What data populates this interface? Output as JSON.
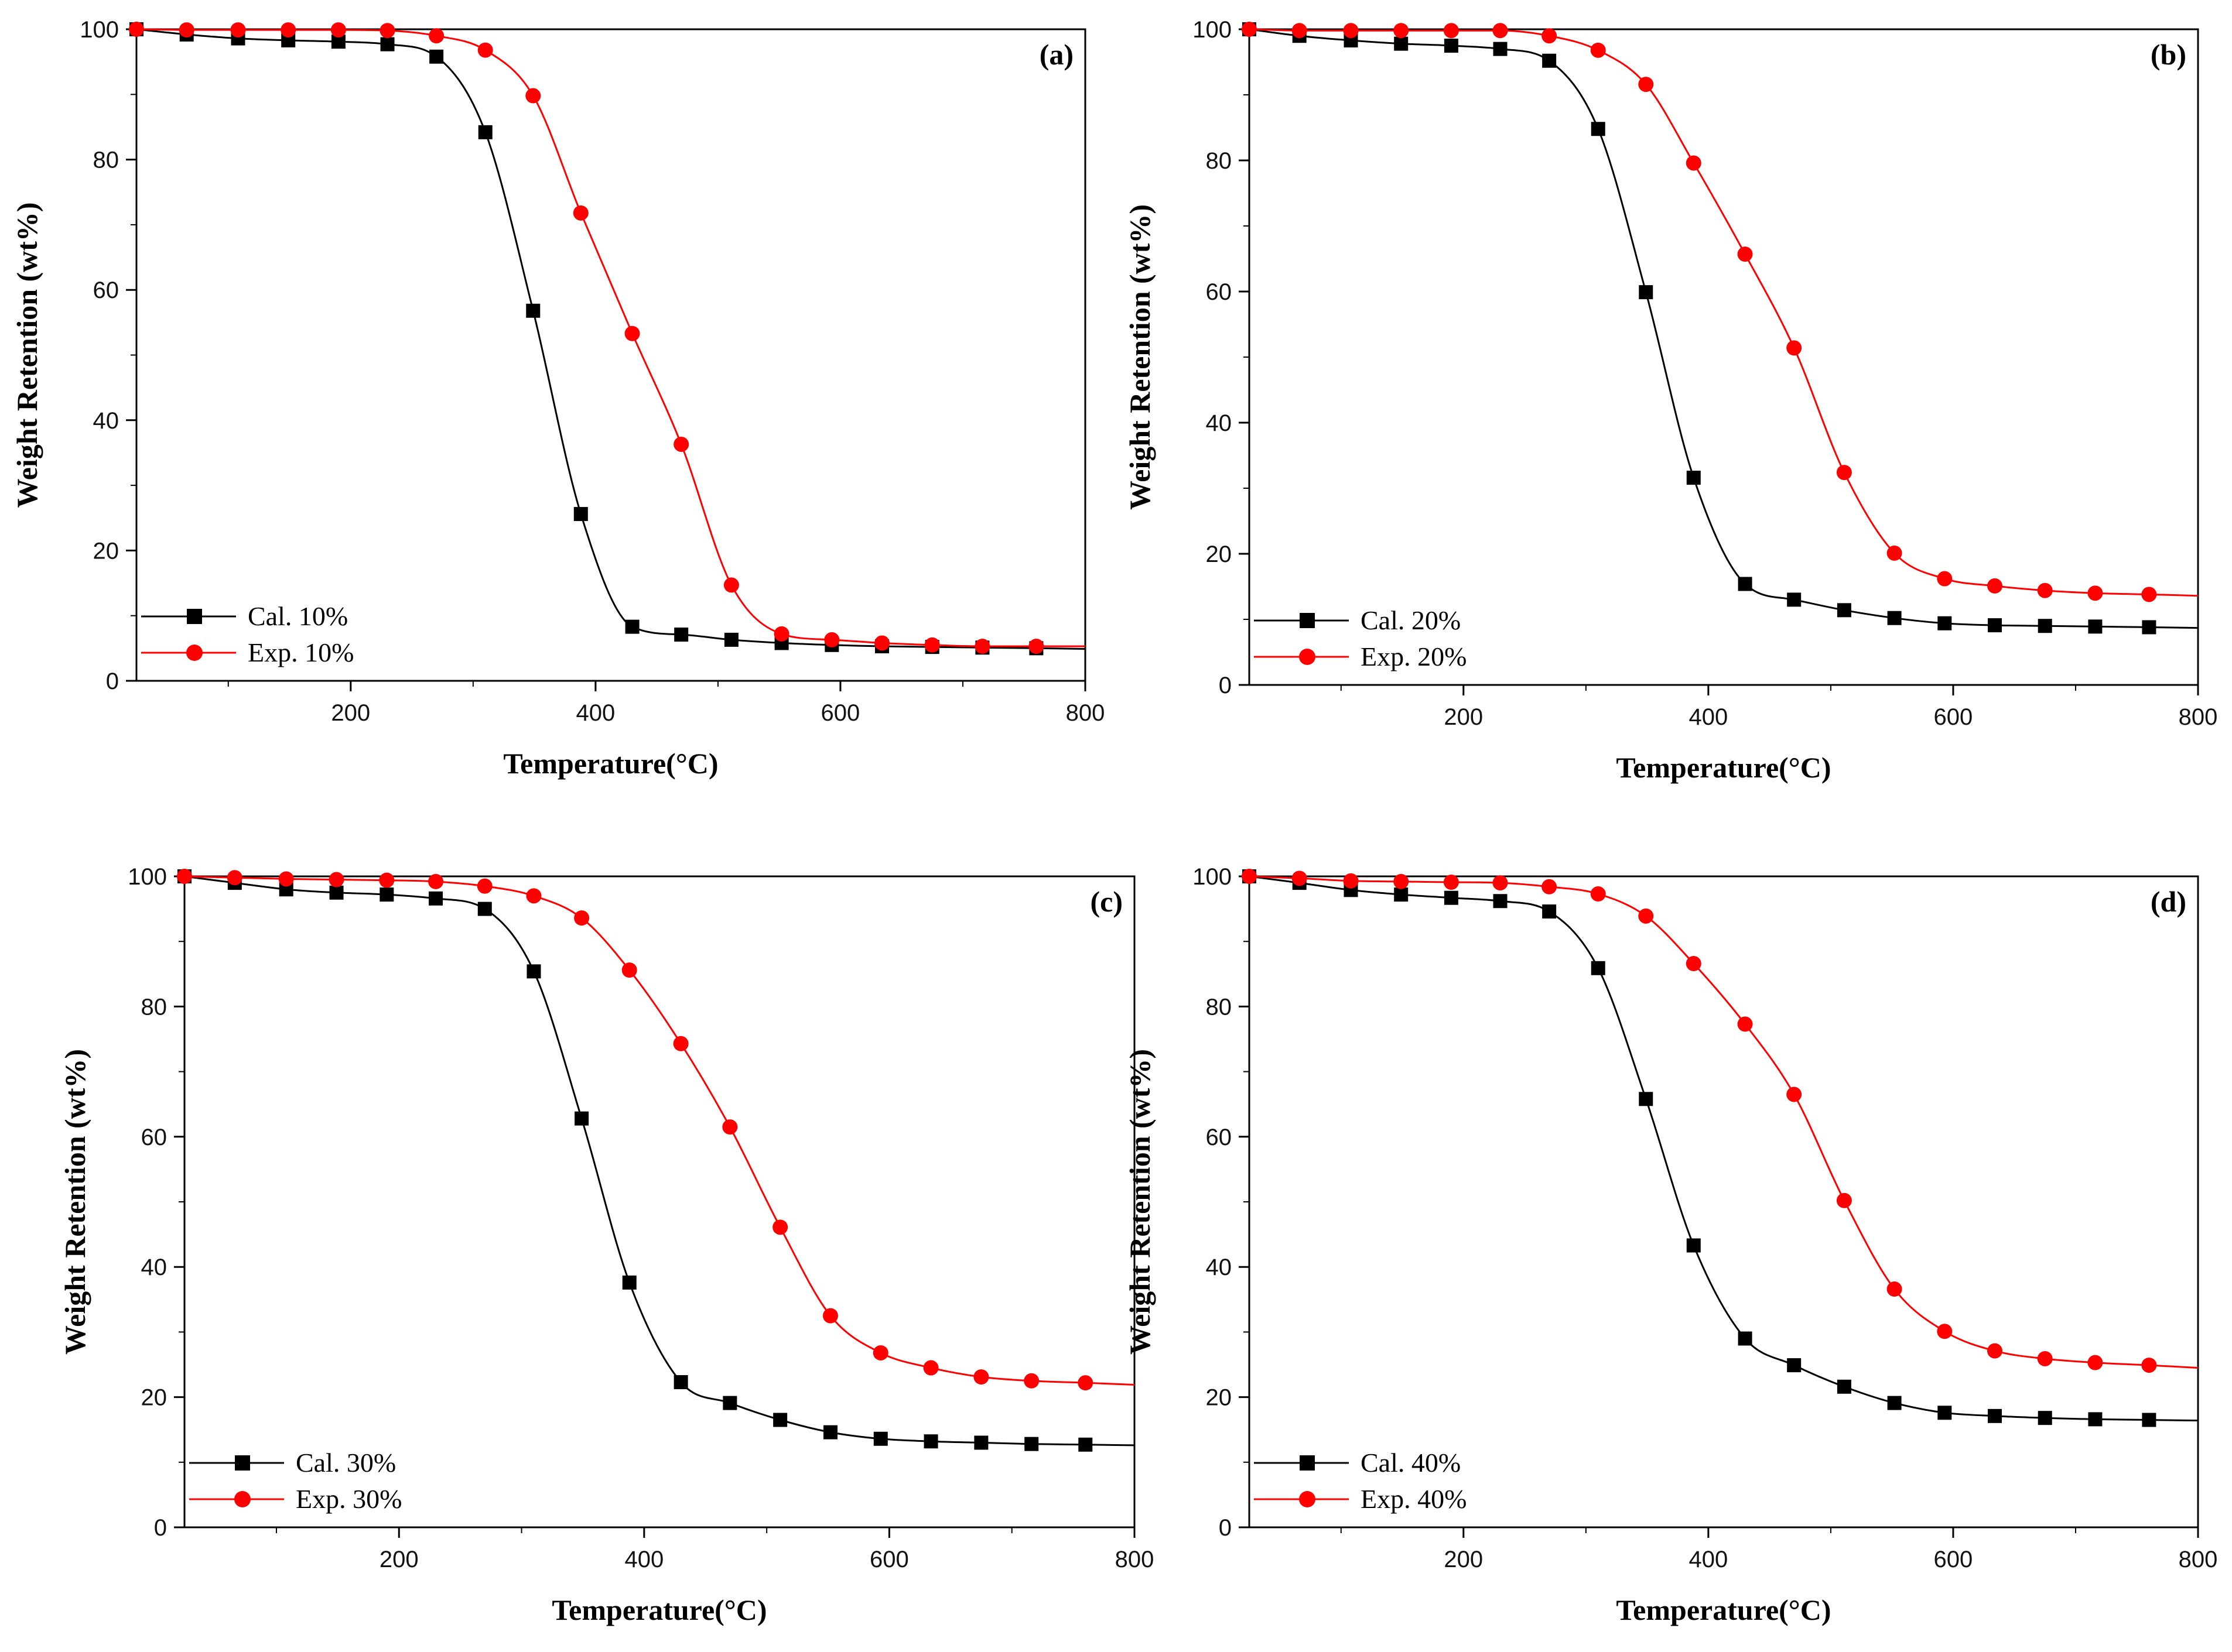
{
  "chart_data": [
    {
      "type": "line",
      "panel_label": "(a)",
      "xlabel": "Temperature(°C)",
      "ylabel": "Weight Retention (wt%)",
      "xlim": [
        25,
        800
      ],
      "ylim": [
        0,
        100
      ],
      "xticks": [
        200,
        400,
        600,
        800
      ],
      "yticks": [
        0,
        20,
        40,
        60,
        80,
        100
      ],
      "x": [
        25,
        66,
        108,
        149,
        190,
        230,
        270,
        310,
        349,
        388,
        430,
        470,
        511,
        552,
        593,
        634,
        675,
        716,
        760
      ],
      "series": [
        {
          "name": "Cal. 10%",
          "color": "#000000",
          "marker": "square",
          "values": [
            100,
            99.2,
            98.6,
            98.3,
            98.1,
            97.7,
            95.8,
            84.2,
            56.8,
            25.6,
            8.3,
            7.1,
            6.3,
            5.8,
            5.5,
            5.3,
            5.2,
            5.1,
            5.0
          ]
        },
        {
          "name": "Exp. 10%",
          "color": "#ff0000",
          "marker": "circle",
          "values": [
            100,
            99.9,
            99.9,
            99.9,
            99.9,
            99.8,
            99.0,
            96.8,
            89.8,
            71.8,
            53.3,
            36.3,
            14.7,
            7.2,
            6.3,
            5.8,
            5.5,
            5.3,
            5.3
          ]
        }
      ]
    },
    {
      "type": "line",
      "panel_label": "(b)",
      "xlabel": "Temperature(°C)",
      "ylabel": "Weight Retention (wt%)",
      "xlim": [
        25,
        800
      ],
      "ylim": [
        0,
        100
      ],
      "xticks": [
        200,
        400,
        600,
        800
      ],
      "yticks": [
        0,
        20,
        40,
        60,
        80,
        100
      ],
      "x": [
        25,
        66,
        108,
        149,
        190,
        230,
        270,
        310,
        349,
        388,
        430,
        470,
        511,
        552,
        593,
        634,
        675,
        716,
        760
      ],
      "series": [
        {
          "name": "Cal. 20%",
          "color": "#000000",
          "marker": "square",
          "values": [
            100,
            99.0,
            98.3,
            97.8,
            97.5,
            97.0,
            95.2,
            84.8,
            59.9,
            31.6,
            15.4,
            13.0,
            11.4,
            10.2,
            9.4,
            9.1,
            9.0,
            8.9,
            8.8
          ]
        },
        {
          "name": "Exp. 20%",
          "color": "#ff0000",
          "marker": "circle",
          "values": [
            100,
            99.8,
            99.8,
            99.8,
            99.8,
            99.8,
            99.0,
            96.8,
            91.6,
            79.6,
            65.7,
            51.4,
            32.4,
            20.1,
            16.2,
            15.1,
            14.4,
            14.0,
            13.8
          ]
        }
      ]
    },
    {
      "type": "line",
      "panel_label": "(c)",
      "xlabel": "Temperature(°C)",
      "ylabel": "Weight Retention (wt%)",
      "xlim": [
        25,
        800
      ],
      "ylim": [
        0,
        100
      ],
      "xticks": [
        200,
        400,
        600,
        800
      ],
      "yticks": [
        0,
        20,
        40,
        60,
        80,
        100
      ],
      "x": [
        25,
        66,
        108,
        149,
        190,
        230,
        270,
        310,
        349,
        388,
        430,
        470,
        511,
        552,
        593,
        634,
        675,
        716,
        760
      ],
      "series": [
        {
          "name": "Cal. 30%",
          "color": "#000000",
          "marker": "square",
          "values": [
            100,
            99.0,
            98.0,
            97.5,
            97.2,
            96.6,
            95.0,
            85.4,
            62.8,
            37.6,
            22.3,
            19.1,
            16.5,
            14.6,
            13.6,
            13.2,
            13.0,
            12.8,
            12.7
          ]
        },
        {
          "name": "Exp. 30%",
          "color": "#ff0000",
          "marker": "circle",
          "values": [
            100,
            99.8,
            99.6,
            99.5,
            99.4,
            99.2,
            98.5,
            97.0,
            93.6,
            85.6,
            74.3,
            61.5,
            46.1,
            32.5,
            26.8,
            24.5,
            23.1,
            22.5,
            22.2
          ]
        }
      ]
    },
    {
      "type": "line",
      "panel_label": "(d)",
      "xlabel": "Temperature(°C)",
      "ylabel": "Weight Retention (wt%)",
      "xlim": [
        25,
        800
      ],
      "ylim": [
        0,
        100
      ],
      "xticks": [
        200,
        400,
        600,
        800
      ],
      "yticks": [
        0,
        20,
        40,
        60,
        80,
        100
      ],
      "x": [
        25,
        66,
        108,
        149,
        190,
        230,
        270,
        310,
        349,
        388,
        430,
        470,
        511,
        552,
        593,
        634,
        675,
        716,
        760
      ],
      "series": [
        {
          "name": "Cal. 40%",
          "color": "#000000",
          "marker": "square",
          "values": [
            100,
            99.0,
            97.9,
            97.2,
            96.7,
            96.2,
            94.6,
            85.9,
            65.8,
            43.3,
            29.0,
            24.9,
            21.6,
            19.1,
            17.6,
            17.1,
            16.8,
            16.6,
            16.5
          ]
        },
        {
          "name": "Exp. 40%",
          "color": "#ff0000",
          "marker": "circle",
          "values": [
            100,
            99.7,
            99.3,
            99.2,
            99.1,
            99.0,
            98.4,
            97.3,
            93.9,
            86.6,
            77.3,
            66.5,
            50.2,
            36.6,
            30.1,
            27.1,
            25.9,
            25.3,
            24.9
          ]
        }
      ]
    }
  ]
}
